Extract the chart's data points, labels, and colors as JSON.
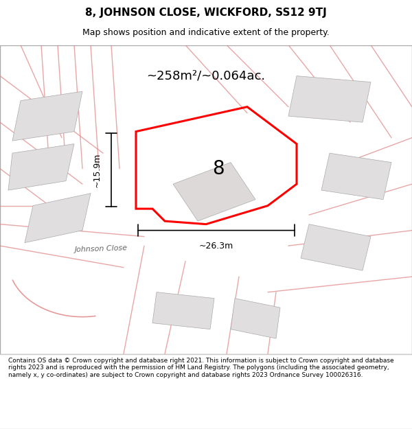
{
  "title_line1": "8, JOHNSON CLOSE, WICKFORD, SS12 9TJ",
  "title_line2": "Map shows position and indicative extent of the property.",
  "area_label": "~258m²/~0.064ac.",
  "dim_height": "~15.9m",
  "dim_width": "~26.3m",
  "plot_number": "8",
  "footer_text": "Contains OS data © Crown copyright and database right 2021. This information is subject to Crown copyright and database rights 2023 and is reproduced with the permission of HM Land Registry. The polygons (including the associated geometry, namely x, y co-ordinates) are subject to Crown copyright and database rights 2023 Ordnance Survey 100026316.",
  "bg_color": "#f0eeee",
  "map_bg": "#f5f3f2",
  "red_color": "#ff0000",
  "pink_color": "#f0a0a0",
  "gray_color": "#cccccc",
  "dark_gray": "#888888",
  "building_fill": "#e8e5e5",
  "road_label": "Johnson Close"
}
